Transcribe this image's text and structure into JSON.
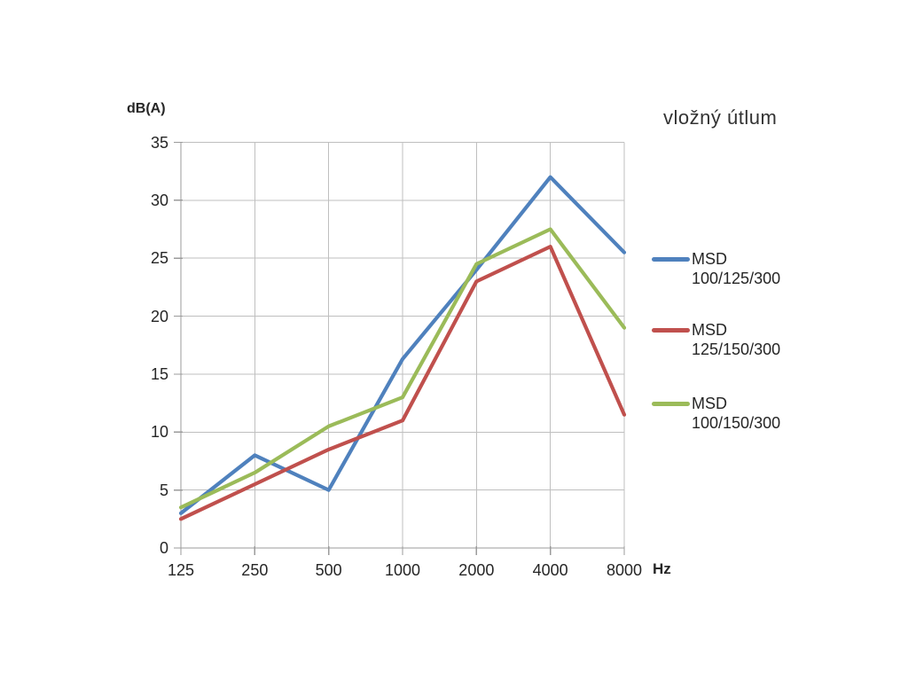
{
  "page": {
    "background": "#FFFFFF"
  },
  "chart_data": {
    "type": "line",
    "title": "vložný útlum",
    "y_axis_title": "dB(A)",
    "x_axis_unit": "Hz",
    "xlabel": "Hz",
    "ylabel": "dB(A)",
    "categories": [
      "125",
      "250",
      "500",
      "1000",
      "2000",
      "4000",
      "8000"
    ],
    "y_ticks": [
      0,
      5,
      10,
      15,
      20,
      25,
      30,
      35
    ],
    "ylim": [
      0,
      35
    ],
    "grid": true,
    "legend_position": "right",
    "series": [
      {
        "name": "MSD 100/125/300",
        "label_lines": [
          "MSD",
          "100/125/300"
        ],
        "color": "#4F81BD",
        "values": [
          3,
          8,
          5,
          16.3,
          24,
          32,
          25.5
        ]
      },
      {
        "name": "MSD 125/150/300",
        "label_lines": [
          "MSD",
          "125/150/300"
        ],
        "color": "#C0504D",
        "values": [
          2.5,
          5.5,
          8.5,
          11,
          23,
          26,
          11.5
        ]
      },
      {
        "name": "MSD 100/150/300",
        "label_lines": [
          "MSD",
          "100/150/300"
        ],
        "color": "#9BBB59",
        "values": [
          3.5,
          6.5,
          10.5,
          13,
          24.5,
          27.5,
          19
        ]
      }
    ]
  },
  "colors": {
    "gridline": "#BFBFBF",
    "axis": "#9B9B9B",
    "text": "#262626",
    "title": "#333333",
    "series_blue": "#4F81BD",
    "series_red": "#C0504D",
    "series_green": "#9BBB59"
  }
}
